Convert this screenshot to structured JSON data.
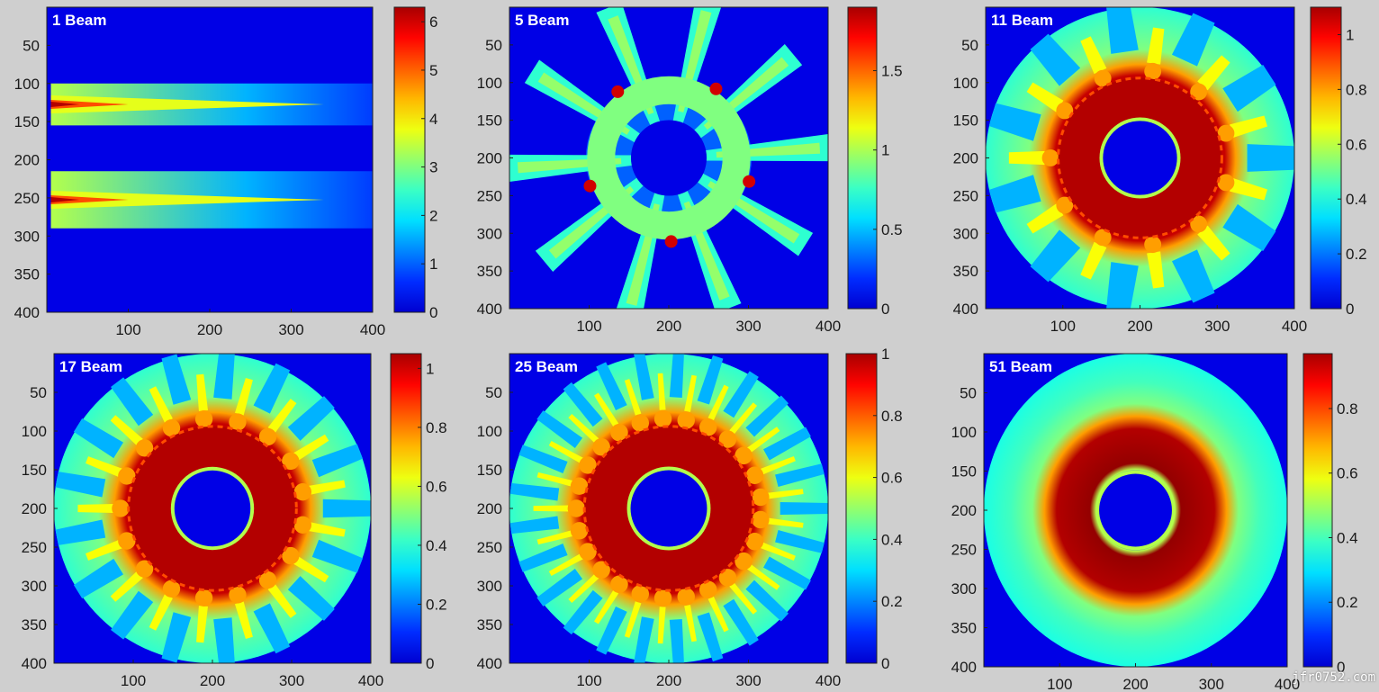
{
  "colormap": "jet",
  "watermark": "jfr0752.com",
  "chart_data": [
    {
      "type": "heatmap",
      "title": "1 Beam",
      "beams": 1,
      "pattern": "single beam",
      "yticks": [
        50,
        100,
        150,
        200,
        250,
        300,
        350,
        400
      ],
      "xticks": [
        100,
        200,
        300,
        400
      ],
      "xlim": [
        0,
        400
      ],
      "ylim": [
        0,
        400
      ],
      "colorbar": {
        "range": [
          0,
          6.3
        ],
        "ticks": [
          0,
          1,
          2,
          3,
          4,
          5,
          6
        ]
      }
    },
    {
      "type": "heatmap",
      "title": "5 Beam",
      "beams": 5,
      "pattern": "spokes",
      "yticks": [
        50,
        100,
        150,
        200,
        250,
        300,
        350,
        400
      ],
      "xticks": [
        100,
        200,
        300,
        400
      ],
      "xlim": [
        0,
        400
      ],
      "ylim": [
        0,
        400
      ],
      "colorbar": {
        "range": [
          0,
          1.9
        ],
        "ticks": [
          0,
          0.5,
          1,
          1.5
        ]
      }
    },
    {
      "type": "heatmap",
      "title": "11 Beam",
      "beams": 11,
      "pattern": "annulus",
      "yticks": [
        50,
        100,
        150,
        200,
        250,
        300,
        350,
        400
      ],
      "xticks": [
        100,
        200,
        300,
        400
      ],
      "xlim": [
        0,
        400
      ],
      "ylim": [
        0,
        400
      ],
      "colorbar": {
        "range": [
          0,
          1.1
        ],
        "ticks": [
          0,
          0.2,
          0.4,
          0.6,
          0.8,
          1
        ]
      }
    },
    {
      "type": "heatmap",
      "title": "17 Beam",
      "beams": 17,
      "pattern": "annulus",
      "yticks": [
        50,
        100,
        150,
        200,
        250,
        300,
        350,
        400
      ],
      "xticks": [
        100,
        200,
        300,
        400
      ],
      "xlim": [
        0,
        400
      ],
      "ylim": [
        0,
        400
      ],
      "colorbar": {
        "range": [
          0,
          1.05
        ],
        "ticks": [
          0,
          0.2,
          0.4,
          0.6,
          0.8,
          1
        ]
      }
    },
    {
      "type": "heatmap",
      "title": "25 Beam",
      "beams": 25,
      "pattern": "annulus",
      "yticks": [
        50,
        100,
        150,
        200,
        250,
        300,
        350,
        400
      ],
      "xticks": [
        100,
        200,
        300,
        400
      ],
      "xlim": [
        0,
        400
      ],
      "ylim": [
        0,
        400
      ],
      "colorbar": {
        "range": [
          0,
          1
        ],
        "ticks": [
          0,
          0.2,
          0.4,
          0.6,
          0.8,
          1
        ]
      }
    },
    {
      "type": "heatmap",
      "title": "51 Beam",
      "beams": 51,
      "pattern": "annulus",
      "yticks": [
        50,
        100,
        150,
        200,
        250,
        300,
        350,
        400
      ],
      "xticks": [
        100,
        200,
        300,
        400
      ],
      "xlim": [
        0,
        400
      ],
      "ylim": [
        0,
        400
      ],
      "colorbar": {
        "range": [
          0,
          0.97
        ],
        "ticks": [
          0,
          0.2,
          0.4,
          0.6,
          0.8
        ]
      }
    }
  ]
}
